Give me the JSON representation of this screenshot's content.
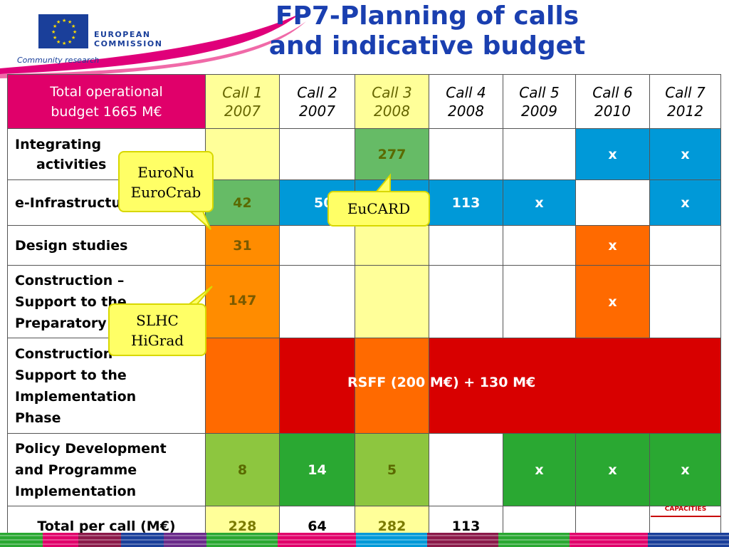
{
  "header": {
    "title_line1": "FP7-Planning of calls",
    "title_line2": "and indicative budget",
    "logo_line1": "EUROPEAN",
    "logo_line2": "COMMISSION",
    "community": "Community research",
    "flag_color": "#1a3f9a",
    "title_color": "#1a3fb0"
  },
  "table": {
    "corner_line1": "Total operational",
    "corner_line2": "budget 1665 M€",
    "calls": [
      {
        "name": "Call 1",
        "year": "2007"
      },
      {
        "name": "Call 2",
        "year": "2007"
      },
      {
        "name": "Call 3",
        "year": "2008"
      },
      {
        "name": "Call 4",
        "year": "2008"
      },
      {
        "name": "Call 5",
        "year": "2009"
      },
      {
        "name": "Call 6",
        "year": "2010"
      },
      {
        "name": "Call 7",
        "year": "2012"
      }
    ],
    "rows": {
      "integrating": {
        "label1": "Integrating",
        "label2": "activities",
        "c3": "277",
        "c6": "x",
        "c7": "x"
      },
      "einfra": {
        "label": "e-Infrastructures",
        "c1": "42",
        "c2": "50",
        "c4": "113",
        "c5": "x",
        "c7": "x"
      },
      "design": {
        "label": "Design studies",
        "c1": "31",
        "c6": "x"
      },
      "construction_prep": {
        "label1": "Construction –",
        "label2": "Support to the",
        "label3": "Preparatory Phase",
        "c1": "147",
        "c6": "x"
      },
      "construction_impl": {
        "label1": "Construction –",
        "label2": "Support to the",
        "label3": "Implementation",
        "label4": "Phase",
        "rsff": "RSFF (200 M€) + 130 M€"
      },
      "policy": {
        "label1": "Policy Development",
        "label2": "and Programme",
        "label3": "Implementation",
        "c1": "8",
        "c2": "14",
        "c3": "5",
        "c5": "x",
        "c6": "x",
        "c7": "x"
      },
      "total": {
        "label": "Total per call (M€)",
        "c1": "228",
        "c2": "64",
        "c3": "282",
        "c4": "113"
      }
    }
  },
  "callouts": {
    "euronu_line1": "EuroNu",
    "euronu_line2": "EuroCrab",
    "eucard": "EuCARD",
    "slhc": "SLHC",
    "higrad": "HiGrad"
  },
  "footer": {
    "capacities": "CAPACITIES"
  }
}
